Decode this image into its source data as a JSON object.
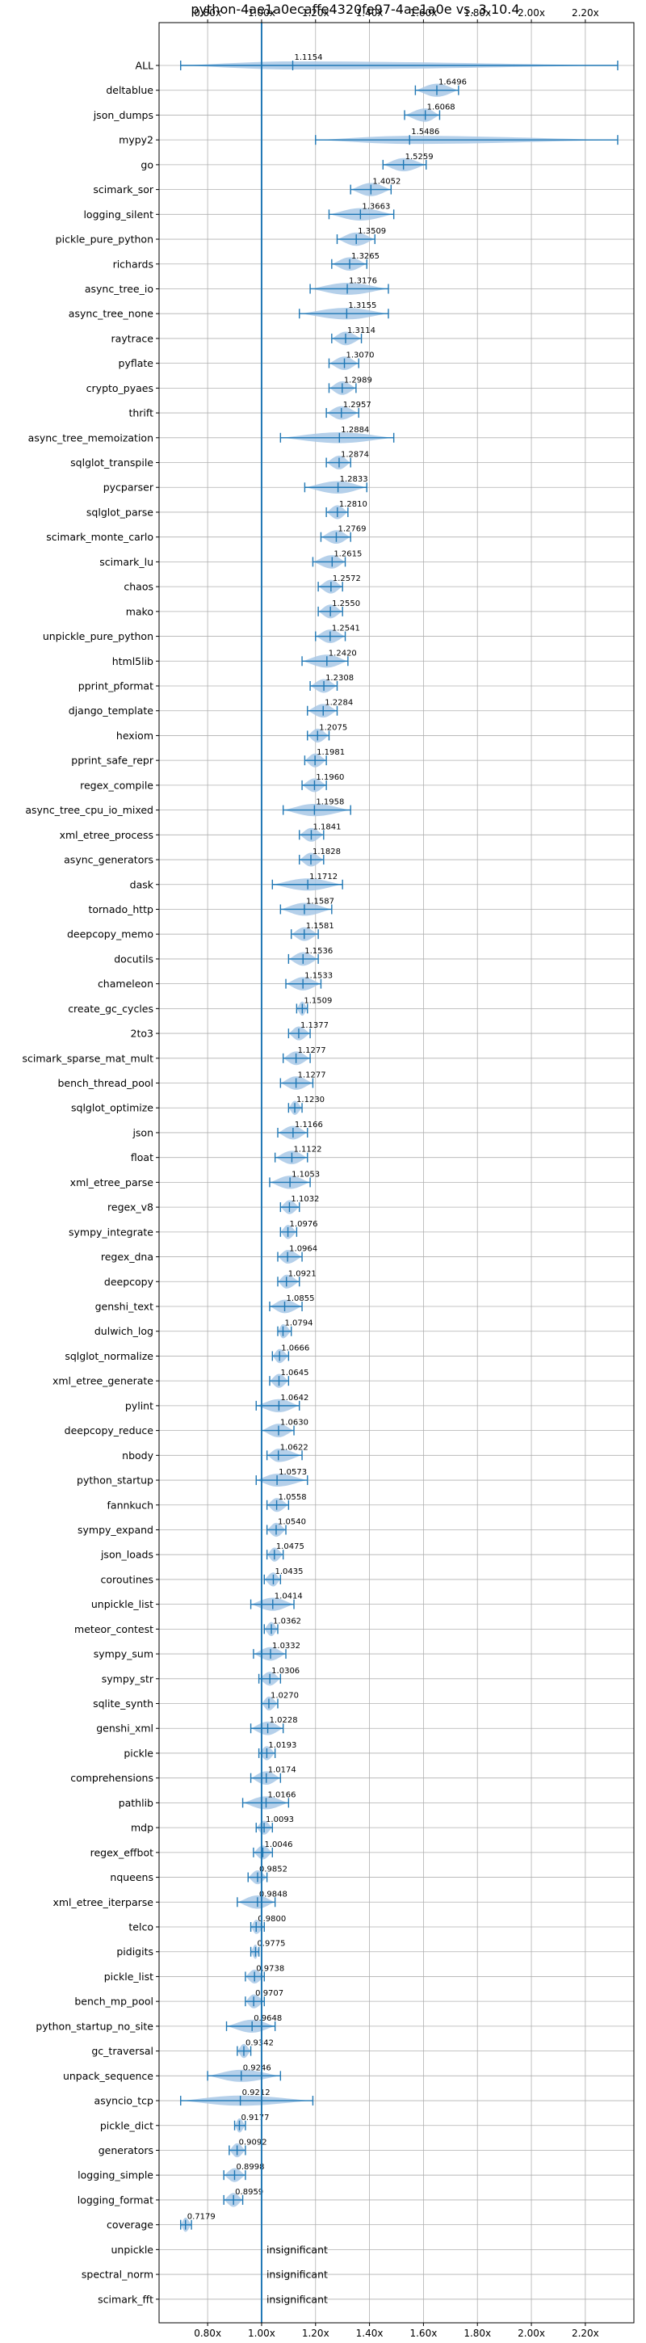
{
  "chart_data": {
    "type": "violin",
    "title": "python-4ae1a0ecaffe4320fe97-4ae1a0e vs. 3.10.4",
    "orientation": "horizontal",
    "xlim": [
      0.62,
      2.38
    ],
    "xticks": [
      0.8,
      1.0,
      1.2,
      1.4,
      1.6,
      1.8,
      2.0,
      2.2
    ],
    "xtick_labels": [
      "0.80x",
      "1.00x",
      "1.20x",
      "1.40x",
      "1.60x",
      "1.80x",
      "2.00x",
      "2.20x"
    ],
    "reference_line": 1.0,
    "grid": true,
    "axis_ticks_top_and_bottom": true,
    "colors": {
      "violin": "#a8c8e6",
      "whisker": "#1f77b4",
      "reference": "#1f77b4",
      "grid": "#b0b0b0"
    },
    "insignificant_label": "insignificant",
    "benchmarks": [
      {
        "name": "ALL",
        "median": 1.1154,
        "label": "1.1154",
        "min": 0.7,
        "max": 2.32
      },
      {
        "name": "deltablue",
        "median": 1.6496,
        "label": "1.6496",
        "min": 1.57,
        "max": 1.73
      },
      {
        "name": "json_dumps",
        "median": 1.6068,
        "label": "1.6068",
        "min": 1.53,
        "max": 1.66
      },
      {
        "name": "mypy2",
        "median": 1.5486,
        "label": "1.5486",
        "min": 1.2,
        "max": 2.32
      },
      {
        "name": "go",
        "median": 1.5259,
        "label": "1.5259",
        "min": 1.45,
        "max": 1.61
      },
      {
        "name": "scimark_sor",
        "median": 1.4052,
        "label": "1.4052",
        "min": 1.33,
        "max": 1.48
      },
      {
        "name": "logging_silent",
        "median": 1.3663,
        "label": "1.3663",
        "min": 1.25,
        "max": 1.49
      },
      {
        "name": "pickle_pure_python",
        "median": 1.3509,
        "label": "1.3509",
        "min": 1.28,
        "max": 1.42
      },
      {
        "name": "richards",
        "median": 1.3265,
        "label": "1.3265",
        "min": 1.26,
        "max": 1.39
      },
      {
        "name": "async_tree_io",
        "median": 1.3176,
        "label": "1.3176",
        "min": 1.18,
        "max": 1.47
      },
      {
        "name": "async_tree_none",
        "median": 1.3155,
        "label": "1.3155",
        "min": 1.14,
        "max": 1.47
      },
      {
        "name": "raytrace",
        "median": 1.3114,
        "label": "1.3114",
        "min": 1.26,
        "max": 1.37
      },
      {
        "name": "pyflate",
        "median": 1.307,
        "label": "1.3070",
        "min": 1.25,
        "max": 1.36
      },
      {
        "name": "crypto_pyaes",
        "median": 1.2989,
        "label": "1.2989",
        "min": 1.25,
        "max": 1.35
      },
      {
        "name": "thrift",
        "median": 1.2957,
        "label": "1.2957",
        "min": 1.24,
        "max": 1.36
      },
      {
        "name": "async_tree_memoization",
        "median": 1.2884,
        "label": "1.2884",
        "min": 1.07,
        "max": 1.49
      },
      {
        "name": "sqlglot_transpile",
        "median": 1.2874,
        "label": "1.2874",
        "min": 1.24,
        "max": 1.33
      },
      {
        "name": "pycparser",
        "median": 1.2833,
        "label": "1.2833",
        "min": 1.16,
        "max": 1.39
      },
      {
        "name": "sqlglot_parse",
        "median": 1.281,
        "label": "1.2810",
        "min": 1.24,
        "max": 1.32
      },
      {
        "name": "scimark_monte_carlo",
        "median": 1.2769,
        "label": "1.2769",
        "min": 1.22,
        "max": 1.33
      },
      {
        "name": "scimark_lu",
        "median": 1.2615,
        "label": "1.2615",
        "min": 1.19,
        "max": 1.31
      },
      {
        "name": "chaos",
        "median": 1.2572,
        "label": "1.2572",
        "min": 1.21,
        "max": 1.3
      },
      {
        "name": "mako",
        "median": 1.255,
        "label": "1.2550",
        "min": 1.21,
        "max": 1.3
      },
      {
        "name": "unpickle_pure_python",
        "median": 1.2541,
        "label": "1.2541",
        "min": 1.2,
        "max": 1.31
      },
      {
        "name": "html5lib",
        "median": 1.242,
        "label": "1.2420",
        "min": 1.15,
        "max": 1.32
      },
      {
        "name": "pprint_pformat",
        "median": 1.2308,
        "label": "1.2308",
        "min": 1.18,
        "max": 1.28
      },
      {
        "name": "django_template",
        "median": 1.2284,
        "label": "1.2284",
        "min": 1.17,
        "max": 1.28
      },
      {
        "name": "hexiom",
        "median": 1.2075,
        "label": "1.2075",
        "min": 1.17,
        "max": 1.25
      },
      {
        "name": "pprint_safe_repr",
        "median": 1.1981,
        "label": "1.1981",
        "min": 1.16,
        "max": 1.24
      },
      {
        "name": "regex_compile",
        "median": 1.196,
        "label": "1.1960",
        "min": 1.15,
        "max": 1.24
      },
      {
        "name": "async_tree_cpu_io_mixed",
        "median": 1.1958,
        "label": "1.1958",
        "min": 1.08,
        "max": 1.33
      },
      {
        "name": "xml_etree_process",
        "median": 1.1841,
        "label": "1.1841",
        "min": 1.14,
        "max": 1.23
      },
      {
        "name": "async_generators",
        "median": 1.1828,
        "label": "1.1828",
        "min": 1.14,
        "max": 1.23
      },
      {
        "name": "dask",
        "median": 1.1712,
        "label": "1.1712",
        "min": 1.04,
        "max": 1.3
      },
      {
        "name": "tornado_http",
        "median": 1.1587,
        "label": "1.1587",
        "min": 1.07,
        "max": 1.26
      },
      {
        "name": "deepcopy_memo",
        "median": 1.1581,
        "label": "1.1581",
        "min": 1.11,
        "max": 1.21
      },
      {
        "name": "docutils",
        "median": 1.1536,
        "label": "1.1536",
        "min": 1.1,
        "max": 1.21
      },
      {
        "name": "chameleon",
        "median": 1.1533,
        "label": "1.1533",
        "min": 1.09,
        "max": 1.22
      },
      {
        "name": "create_gc_cycles",
        "median": 1.1509,
        "label": "1.1509",
        "min": 1.13,
        "max": 1.17
      },
      {
        "name": "2to3",
        "median": 1.1377,
        "label": "1.1377",
        "min": 1.1,
        "max": 1.18
      },
      {
        "name": "scimark_sparse_mat_mult",
        "median": 1.1277,
        "label": "1.1277",
        "min": 1.08,
        "max": 1.18
      },
      {
        "name": "bench_thread_pool",
        "median": 1.1277,
        "label": "1.1277",
        "min": 1.07,
        "max": 1.19
      },
      {
        "name": "sqlglot_optimize",
        "median": 1.123,
        "label": "1.1230",
        "min": 1.1,
        "max": 1.15
      },
      {
        "name": "json",
        "median": 1.1166,
        "label": "1.1166",
        "min": 1.06,
        "max": 1.17
      },
      {
        "name": "float",
        "median": 1.1122,
        "label": "1.1122",
        "min": 1.05,
        "max": 1.17
      },
      {
        "name": "xml_etree_parse",
        "median": 1.1053,
        "label": "1.1053",
        "min": 1.03,
        "max": 1.18
      },
      {
        "name": "regex_v8",
        "median": 1.1032,
        "label": "1.1032",
        "min": 1.07,
        "max": 1.14
      },
      {
        "name": "sympy_integrate",
        "median": 1.0976,
        "label": "1.0976",
        "min": 1.07,
        "max": 1.13
      },
      {
        "name": "regex_dna",
        "median": 1.0964,
        "label": "1.0964",
        "min": 1.06,
        "max": 1.15
      },
      {
        "name": "deepcopy",
        "median": 1.0921,
        "label": "1.0921",
        "min": 1.06,
        "max": 1.14
      },
      {
        "name": "genshi_text",
        "median": 1.0855,
        "label": "1.0855",
        "min": 1.03,
        "max": 1.15
      },
      {
        "name": "dulwich_log",
        "median": 1.0794,
        "label": "1.0794",
        "min": 1.06,
        "max": 1.11
      },
      {
        "name": "sqlglot_normalize",
        "median": 1.0666,
        "label": "1.0666",
        "min": 1.04,
        "max": 1.1
      },
      {
        "name": "xml_etree_generate",
        "median": 1.0645,
        "label": "1.0645",
        "min": 1.03,
        "max": 1.1
      },
      {
        "name": "pylint",
        "median": 1.0642,
        "label": "1.0642",
        "min": 0.98,
        "max": 1.14
      },
      {
        "name": "deepcopy_reduce",
        "median": 1.063,
        "label": "1.0630",
        "min": 1.0,
        "max": 1.12
      },
      {
        "name": "nbody",
        "median": 1.0622,
        "label": "1.0622",
        "min": 1.02,
        "max": 1.15
      },
      {
        "name": "python_startup",
        "median": 1.0573,
        "label": "1.0573",
        "min": 0.98,
        "max": 1.17
      },
      {
        "name": "fannkuch",
        "median": 1.0558,
        "label": "1.0558",
        "min": 1.02,
        "max": 1.1
      },
      {
        "name": "sympy_expand",
        "median": 1.054,
        "label": "1.0540",
        "min": 1.02,
        "max": 1.09
      },
      {
        "name": "json_loads",
        "median": 1.0475,
        "label": "1.0475",
        "min": 1.02,
        "max": 1.08
      },
      {
        "name": "coroutines",
        "median": 1.0435,
        "label": "1.0435",
        "min": 1.01,
        "max": 1.07
      },
      {
        "name": "unpickle_list",
        "median": 1.0414,
        "label": "1.0414",
        "min": 0.96,
        "max": 1.12
      },
      {
        "name": "meteor_contest",
        "median": 1.0362,
        "label": "1.0362",
        "min": 1.01,
        "max": 1.06
      },
      {
        "name": "sympy_sum",
        "median": 1.0332,
        "label": "1.0332",
        "min": 0.97,
        "max": 1.09
      },
      {
        "name": "sympy_str",
        "median": 1.0306,
        "label": "1.0306",
        "min": 0.99,
        "max": 1.07
      },
      {
        "name": "sqlite_synth",
        "median": 1.027,
        "label": "1.0270",
        "min": 1.0,
        "max": 1.06
      },
      {
        "name": "genshi_xml",
        "median": 1.0228,
        "label": "1.0228",
        "min": 0.96,
        "max": 1.08
      },
      {
        "name": "pickle",
        "median": 1.0193,
        "label": "1.0193",
        "min": 0.99,
        "max": 1.05
      },
      {
        "name": "comprehensions",
        "median": 1.0174,
        "label": "1.0174",
        "min": 0.96,
        "max": 1.07
      },
      {
        "name": "pathlib",
        "median": 1.0166,
        "label": "1.0166",
        "min": 0.93,
        "max": 1.1
      },
      {
        "name": "mdp",
        "median": 1.0093,
        "label": "1.0093",
        "min": 0.98,
        "max": 1.04
      },
      {
        "name": "regex_effbot",
        "median": 1.0046,
        "label": "1.0046",
        "min": 0.97,
        "max": 1.04
      },
      {
        "name": "nqueens",
        "median": 0.9852,
        "label": "0.9852",
        "min": 0.95,
        "max": 1.02
      },
      {
        "name": "xml_etree_iterparse",
        "median": 0.9848,
        "label": "0.9848",
        "min": 0.91,
        "max": 1.05
      },
      {
        "name": "telco",
        "median": 0.98,
        "label": "0.9800",
        "min": 0.96,
        "max": 1.01
      },
      {
        "name": "pidigits",
        "median": 0.9775,
        "label": "0.9775",
        "min": 0.96,
        "max": 0.99
      },
      {
        "name": "pickle_list",
        "median": 0.9738,
        "label": "0.9738",
        "min": 0.94,
        "max": 1.01
      },
      {
        "name": "bench_mp_pool",
        "median": 0.9707,
        "label": "0.9707",
        "min": 0.94,
        "max": 1.01
      },
      {
        "name": "python_startup_no_site",
        "median": 0.9648,
        "label": "0.9648",
        "min": 0.87,
        "max": 1.05
      },
      {
        "name": "gc_traversal",
        "median": 0.9342,
        "label": "0.9342",
        "min": 0.91,
        "max": 0.96
      },
      {
        "name": "unpack_sequence",
        "median": 0.9246,
        "label": "0.9246",
        "min": 0.8,
        "max": 1.07
      },
      {
        "name": "asyncio_tcp",
        "median": 0.9212,
        "label": "0.9212",
        "min": 0.7,
        "max": 1.19
      },
      {
        "name": "pickle_dict",
        "median": 0.9177,
        "label": "0.9177",
        "min": 0.9,
        "max": 0.94
      },
      {
        "name": "generators",
        "median": 0.9092,
        "label": "0.9092",
        "min": 0.88,
        "max": 0.94
      },
      {
        "name": "logging_simple",
        "median": 0.8998,
        "label": "0.8998",
        "min": 0.86,
        "max": 0.94
      },
      {
        "name": "logging_format",
        "median": 0.8959,
        "label": "0.8959",
        "min": 0.86,
        "max": 0.93
      },
      {
        "name": "coverage",
        "median": 0.7179,
        "label": "0.7179",
        "min": 0.7,
        "max": 0.74
      },
      {
        "name": "unpickle",
        "insignificant": true
      },
      {
        "name": "spectral_norm",
        "insignificant": true
      },
      {
        "name": "scimark_fft",
        "insignificant": true
      }
    ]
  }
}
